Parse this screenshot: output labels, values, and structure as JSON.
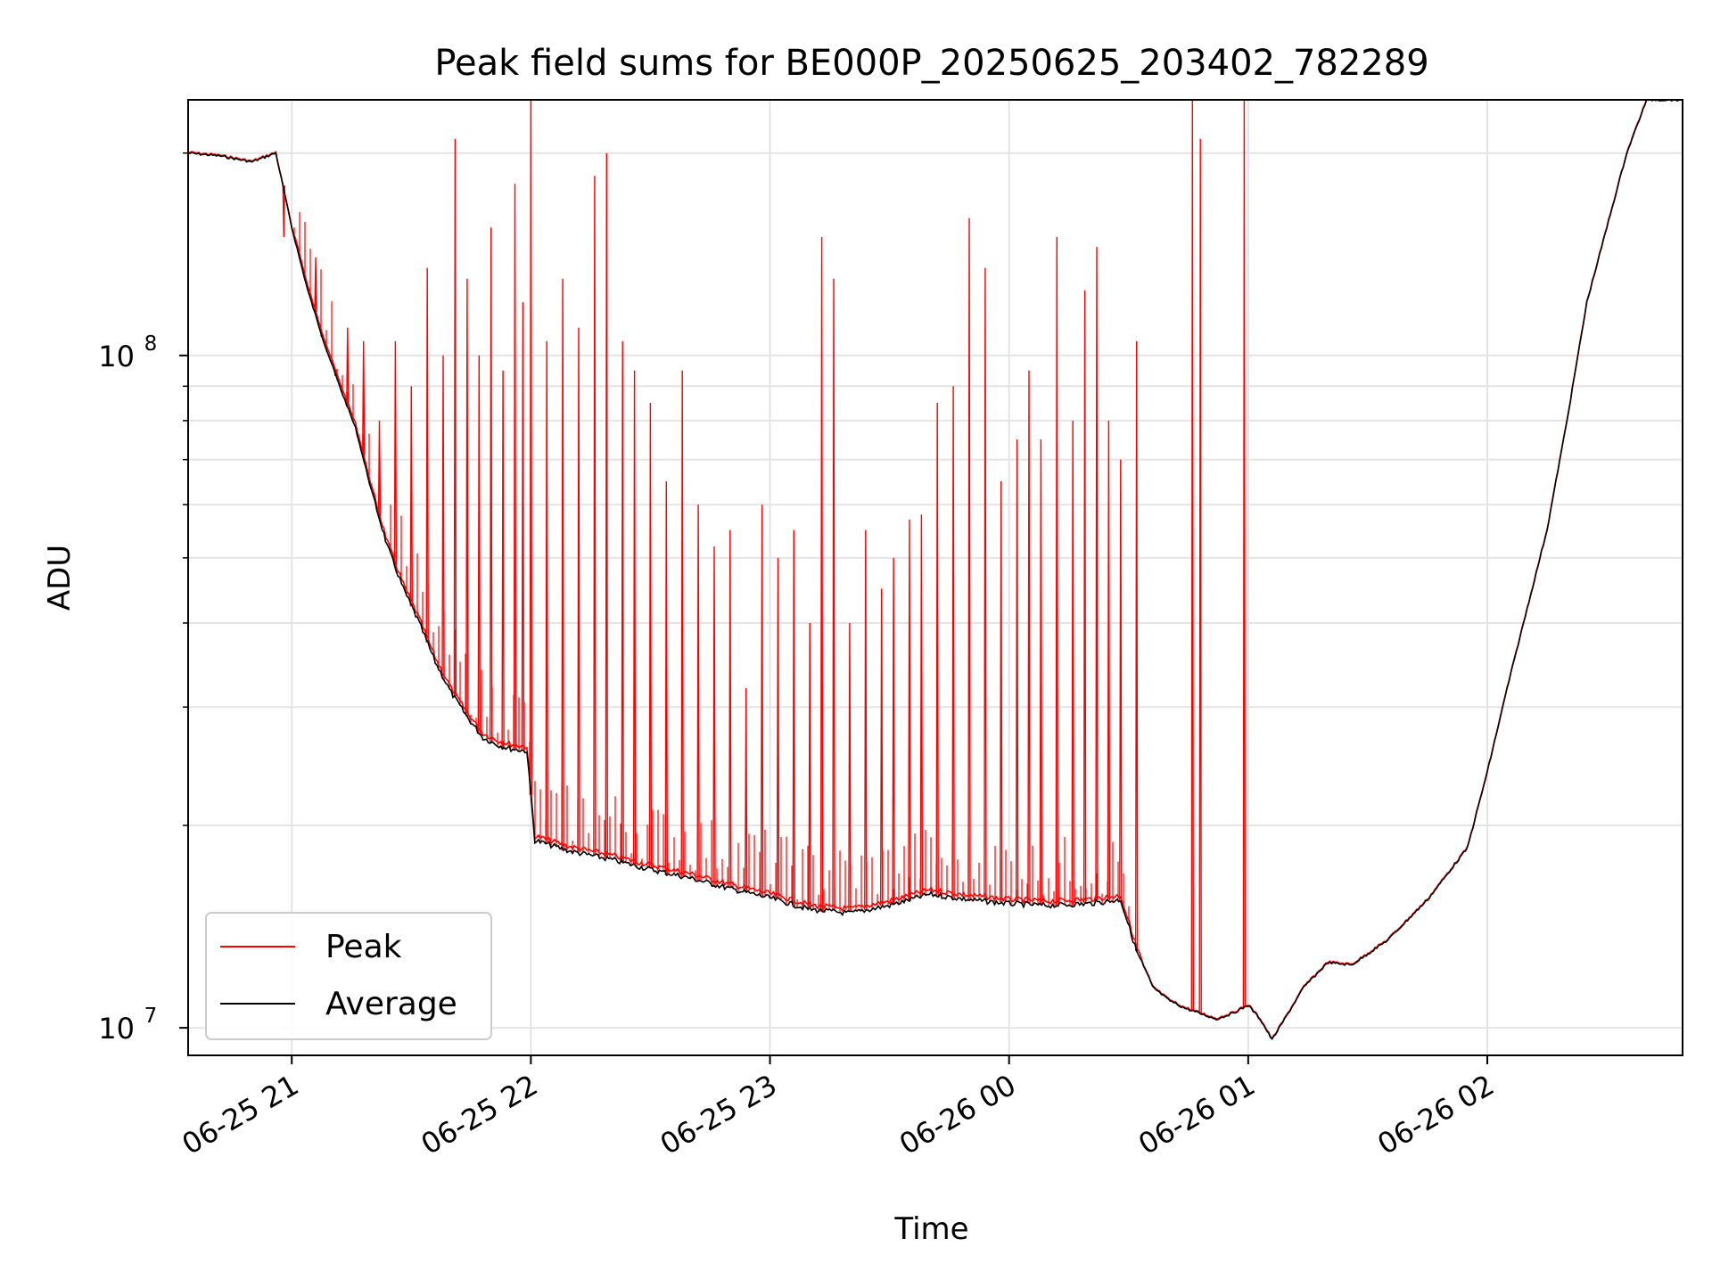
{
  "chart_data": {
    "type": "line",
    "title": "Peak field sums for BE000P_20250625_203402_782289",
    "xlabel": "Time",
    "ylabel": "ADU",
    "xlim": [
      "2025-06-25T20:34",
      "2025-06-26T02:49"
    ],
    "ylim": [
      9100000,
      240000000
    ],
    "yscale": "log",
    "grid": true,
    "legend_position": "lower-left",
    "x_ticks": [
      {
        "t": "2025-06-25T21:00",
        "label": "06-25 21"
      },
      {
        "t": "2025-06-25T22:00",
        "label": "06-25 22"
      },
      {
        "t": "2025-06-25T23:00",
        "label": "06-25 23"
      },
      {
        "t": "2025-06-26T00:00",
        "label": "06-26 00"
      },
      {
        "t": "2025-06-26T01:00",
        "label": "06-26 01"
      },
      {
        "t": "2025-06-26T02:00",
        "label": "06-26 02"
      }
    ],
    "y_major_ticks": [
      {
        "value": 10000000,
        "base": "10",
        "exp": "7"
      },
      {
        "value": 100000000,
        "base": "10",
        "exp": "8"
      }
    ],
    "y_minor_ticks": [
      20000000,
      30000000,
      40000000,
      50000000,
      60000000,
      70000000,
      80000000,
      90000000,
      200000000
    ],
    "series": [
      {
        "name": "Average",
        "color": "#000000",
        "points": [
          [
            "2025-06-25T20:34",
            200000000
          ],
          [
            "2025-06-25T20:42",
            198000000
          ],
          [
            "2025-06-25T20:50",
            194000000
          ],
          [
            "2025-06-25T20:56",
            200000000
          ],
          [
            "2025-06-25T21:00",
            155000000
          ],
          [
            "2025-06-25T21:04",
            125000000
          ],
          [
            "2025-06-25T21:08",
            105000000
          ],
          [
            "2025-06-25T21:12",
            90000000
          ],
          [
            "2025-06-25T21:16",
            78000000
          ],
          [
            "2025-06-25T21:20",
            63000000
          ],
          [
            "2025-06-25T21:24",
            52000000
          ],
          [
            "2025-06-25T21:28",
            45000000
          ],
          [
            "2025-06-25T21:32",
            40000000
          ],
          [
            "2025-06-25T21:36",
            35000000
          ],
          [
            "2025-06-25T21:40",
            31500000
          ],
          [
            "2025-06-25T21:44",
            29000000
          ],
          [
            "2025-06-25T21:48",
            27000000
          ],
          [
            "2025-06-25T21:52",
            26300000
          ],
          [
            "2025-06-25T21:55",
            26000000
          ],
          [
            "2025-06-25T21:59",
            25800000
          ],
          [
            "2025-06-25T22:01",
            19000000
          ],
          [
            "2025-06-25T22:10",
            18300000
          ],
          [
            "2025-06-25T22:20",
            17800000
          ],
          [
            "2025-06-25T22:30",
            17200000
          ],
          [
            "2025-06-25T22:40",
            16700000
          ],
          [
            "2025-06-25T22:50",
            16100000
          ],
          [
            "2025-06-25T23:00",
            15600000
          ],
          [
            "2025-06-25T23:10",
            15000000
          ],
          [
            "2025-06-25T23:20",
            14800000
          ],
          [
            "2025-06-25T23:30",
            15200000
          ],
          [
            "2025-06-25T23:40",
            15800000
          ],
          [
            "2025-06-25T23:50",
            15500000
          ],
          [
            "2025-06-26T00:00",
            15300000
          ],
          [
            "2025-06-26T00:10",
            15200000
          ],
          [
            "2025-06-26T00:20",
            15300000
          ],
          [
            "2025-06-26T00:28",
            15500000
          ],
          [
            "2025-06-26T00:32",
            13000000
          ],
          [
            "2025-06-26T00:36",
            11500000
          ],
          [
            "2025-06-26T00:40",
            11000000
          ],
          [
            "2025-06-26T00:44",
            10700000
          ],
          [
            "2025-06-26T00:48",
            10500000
          ],
          [
            "2025-06-26T00:52",
            10300000
          ],
          [
            "2025-06-26T00:56",
            10500000
          ],
          [
            "2025-06-26T01:00",
            10800000
          ],
          [
            "2025-06-26T01:03",
            10300000
          ],
          [
            "2025-06-26T01:06",
            9600000
          ],
          [
            "2025-06-26T01:10",
            10500000
          ],
          [
            "2025-06-26T01:14",
            11500000
          ],
          [
            "2025-06-26T01:20",
            12500000
          ],
          [
            "2025-06-26T01:26",
            12400000
          ],
          [
            "2025-06-26T01:35",
            13500000
          ],
          [
            "2025-06-26T01:45",
            15500000
          ],
          [
            "2025-06-26T01:55",
            18500000
          ],
          [
            "2025-06-26T02:00",
            24000000
          ],
          [
            "2025-06-26T02:05",
            32000000
          ],
          [
            "2025-06-26T02:10",
            42000000
          ],
          [
            "2025-06-26T02:15",
            55000000
          ],
          [
            "2025-06-26T02:20",
            80000000
          ],
          [
            "2025-06-26T02:25",
            120000000
          ],
          [
            "2025-06-26T02:30",
            155000000
          ],
          [
            "2025-06-26T02:35",
            200000000
          ],
          [
            "2025-06-26T02:40",
            240000000
          ],
          [
            "2025-06-26T02:49",
            240000000
          ]
        ]
      },
      {
        "name": "Peak",
        "color": "#ff0000",
        "spikes": [
          [
            "2025-06-25T20:58",
            150000000
          ],
          [
            "2025-06-25T21:06",
            140000000
          ],
          [
            "2025-06-25T21:11",
            95000000
          ],
          [
            "2025-06-25T21:14",
            110000000
          ],
          [
            "2025-06-25T21:18",
            105000000
          ],
          [
            "2025-06-25T21:22",
            80000000
          ],
          [
            "2025-06-25T21:26",
            105000000
          ],
          [
            "2025-06-25T21:30",
            90000000
          ],
          [
            "2025-06-25T21:34",
            135000000
          ],
          [
            "2025-06-25T21:38",
            100000000
          ],
          [
            "2025-06-25T21:41",
            210000000
          ],
          [
            "2025-06-25T21:44",
            130000000
          ],
          [
            "2025-06-25T21:47",
            100000000
          ],
          [
            "2025-06-25T21:50",
            155000000
          ],
          [
            "2025-06-25T21:53",
            95000000
          ],
          [
            "2025-06-25T21:56",
            180000000
          ],
          [
            "2025-06-25T21:58",
            120000000
          ],
          [
            "2025-06-25T22:00",
            240000000
          ],
          [
            "2025-06-25T22:04",
            105000000
          ],
          [
            "2025-06-25T22:08",
            130000000
          ],
          [
            "2025-06-25T22:12",
            110000000
          ],
          [
            "2025-06-25T22:16",
            185000000
          ],
          [
            "2025-06-25T22:19",
            200000000
          ],
          [
            "2025-06-25T22:23",
            105000000
          ],
          [
            "2025-06-25T22:26",
            95000000
          ],
          [
            "2025-06-25T22:30",
            85000000
          ],
          [
            "2025-06-25T22:34",
            65000000
          ],
          [
            "2025-06-25T22:38",
            95000000
          ],
          [
            "2025-06-25T22:42",
            60000000
          ],
          [
            "2025-06-25T22:46",
            52000000
          ],
          [
            "2025-06-25T22:50",
            55000000
          ],
          [
            "2025-06-25T22:54",
            32000000
          ],
          [
            "2025-06-25T22:58",
            60000000
          ],
          [
            "2025-06-25T23:02",
            50000000
          ],
          [
            "2025-06-25T23:06",
            55000000
          ],
          [
            "2025-06-25T23:10",
            40000000
          ],
          [
            "2025-06-25T23:13",
            150000000
          ],
          [
            "2025-06-25T23:16",
            130000000
          ],
          [
            "2025-06-25T23:20",
            40000000
          ],
          [
            "2025-06-25T23:24",
            55000000
          ],
          [
            "2025-06-25T23:28",
            45000000
          ],
          [
            "2025-06-25T23:31",
            50000000
          ],
          [
            "2025-06-25T23:35",
            57000000
          ],
          [
            "2025-06-25T23:38",
            58000000
          ],
          [
            "2025-06-25T23:42",
            85000000
          ],
          [
            "2025-06-25T23:46",
            90000000
          ],
          [
            "2025-06-25T23:50",
            160000000
          ],
          [
            "2025-06-25T23:54",
            135000000
          ],
          [
            "2025-06-25T23:58",
            65000000
          ],
          [
            "2025-06-26T00:02",
            75000000
          ],
          [
            "2025-06-26T00:05",
            95000000
          ],
          [
            "2025-06-26T00:08",
            75000000
          ],
          [
            "2025-06-26T00:12",
            150000000
          ],
          [
            "2025-06-26T00:16",
            80000000
          ],
          [
            "2025-06-26T00:19",
            125000000
          ],
          [
            "2025-06-26T00:22",
            145000000
          ],
          [
            "2025-06-26T00:25",
            80000000
          ],
          [
            "2025-06-26T00:28",
            70000000
          ],
          [
            "2025-06-26T00:32",
            105000000
          ],
          [
            "2025-06-26T00:46",
            240000000
          ],
          [
            "2025-06-26T00:48",
            210000000
          ],
          [
            "2025-06-26T00:59",
            240000000
          ]
        ]
      }
    ]
  }
}
